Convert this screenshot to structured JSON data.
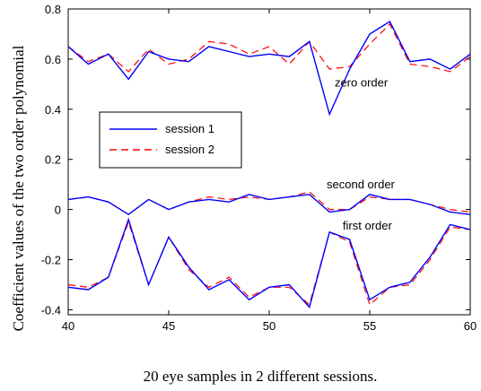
{
  "chart_data": {
    "type": "line",
    "xlabel": "20 eye samples in 2 different sessions.",
    "ylabel": "Coefficient values of  the two order polynomial",
    "xlim": [
      40,
      60
    ],
    "ylim": [
      -0.42,
      0.8
    ],
    "xticks": [
      40,
      45,
      50,
      55,
      60
    ],
    "yticks": [
      -0.4,
      -0.2,
      0,
      0.2,
      0.4,
      0.6,
      0.8
    ],
    "xtick_labels": [
      "40",
      "45",
      "50",
      "55",
      "60"
    ],
    "ytick_labels": [
      "-0.4",
      "-0.2",
      "0",
      "0.2",
      "0.4",
      "0.6",
      "0.8"
    ],
    "grid": false,
    "legend_position": "center-left",
    "x": [
      40,
      41,
      42,
      43,
      44,
      45,
      46,
      47,
      48,
      49,
      50,
      51,
      52,
      53,
      54,
      55,
      56,
      57,
      58,
      59,
      60
    ],
    "groups": [
      {
        "label": "zero order",
        "session1": [
          0.65,
          0.58,
          0.62,
          0.52,
          0.63,
          0.6,
          0.59,
          0.65,
          0.63,
          0.61,
          0.62,
          0.61,
          0.67,
          0.38,
          0.56,
          0.7,
          0.75,
          0.59,
          0.6,
          0.56,
          0.62
        ],
        "session2": [
          0.65,
          0.59,
          0.62,
          0.55,
          0.64,
          0.58,
          0.6,
          0.67,
          0.66,
          0.62,
          0.65,
          0.58,
          0.67,
          0.56,
          0.57,
          0.66,
          0.74,
          0.58,
          0.57,
          0.55,
          0.61
        ]
      },
      {
        "label": "second order",
        "session1": [
          0.04,
          0.05,
          0.03,
          -0.02,
          0.04,
          0.0,
          0.03,
          0.04,
          0.03,
          0.06,
          0.04,
          0.05,
          0.06,
          -0.01,
          0.0,
          0.06,
          0.04,
          0.04,
          0.02,
          -0.01,
          -0.02
        ],
        "session2": [
          0.04,
          0.05,
          0.03,
          -0.02,
          0.04,
          0.0,
          0.03,
          0.05,
          0.04,
          0.05,
          0.04,
          0.05,
          0.07,
          0.0,
          0.0,
          0.05,
          0.04,
          0.04,
          0.02,
          0.0,
          -0.01
        ]
      },
      {
        "label": "first order",
        "session1": [
          -0.31,
          -0.32,
          -0.27,
          -0.04,
          -0.3,
          -0.11,
          -0.23,
          -0.32,
          -0.28,
          -0.36,
          -0.31,
          -0.3,
          -0.39,
          -0.09,
          -0.12,
          -0.36,
          -0.31,
          -0.29,
          -0.19,
          -0.06,
          -0.08
        ],
        "session2": [
          -0.3,
          -0.31,
          -0.27,
          -0.05,
          -0.3,
          -0.11,
          -0.24,
          -0.31,
          -0.27,
          -0.35,
          -0.31,
          -0.31,
          -0.38,
          -0.09,
          -0.13,
          -0.38,
          -0.31,
          -0.3,
          -0.2,
          -0.07,
          -0.08
        ]
      }
    ],
    "series": [
      {
        "name": "session 1",
        "color": "#0000ff",
        "style": "solid"
      },
      {
        "name": "session 2",
        "color": "#ff0000",
        "style": "dashed"
      }
    ]
  }
}
